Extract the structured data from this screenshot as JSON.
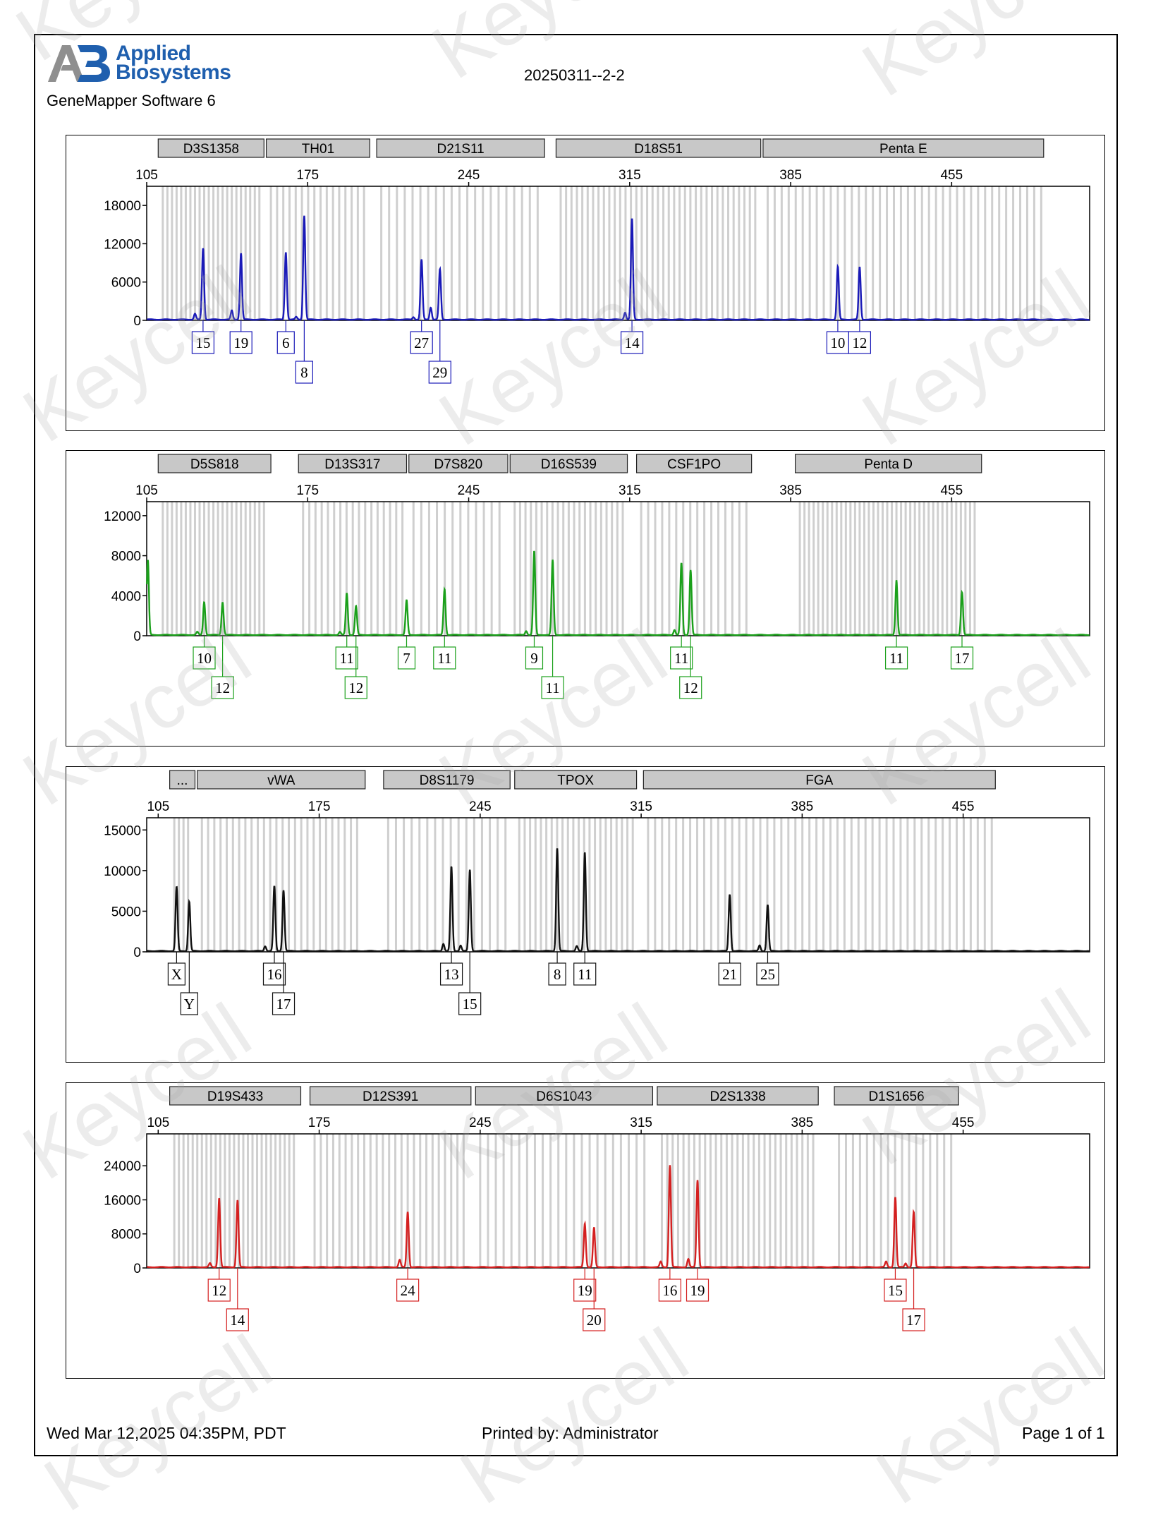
{
  "header": {
    "logo_line1": "Applied",
    "logo_line2": "Biosystems",
    "logo_mark": "AB",
    "software": "GeneMapper Software 6",
    "run_title": "20250311--2-2"
  },
  "footer": {
    "date": "Wed Mar 12,2025 04:35PM, PDT",
    "printed_by": "Printed by: Administrator",
    "page": "Page 1 of 1"
  },
  "watermark": "Keycell",
  "chart_data": [
    {
      "type": "line",
      "color": "#1a1ab8",
      "x_ticks": [
        105,
        175,
        245,
        315,
        385,
        455
      ],
      "xlim": [
        105,
        515
      ],
      "y_ticks": [
        0,
        6000,
        12000,
        18000
      ],
      "ylim": [
        0,
        21000
      ],
      "markers": [
        {
          "name": "D3S1358",
          "start": 110,
          "end": 156
        },
        {
          "name": "TH01",
          "start": 157,
          "end": 202
        },
        {
          "name": "D21S11",
          "start": 205,
          "end": 278
        },
        {
          "name": "D18S51",
          "start": 283,
          "end": 372
        },
        {
          "name": "Penta E",
          "start": 373,
          "end": 495
        }
      ],
      "peaks": [
        {
          "x": 129.5,
          "height": 11200,
          "label": "15"
        },
        {
          "x": 146.0,
          "height": 10400,
          "label": "19"
        },
        {
          "x": 165.5,
          "height": 10600,
          "label": "6"
        },
        {
          "x": 173.5,
          "height": 16300,
          "label": "8"
        },
        {
          "x": 224.5,
          "height": 9400,
          "label": "27"
        },
        {
          "x": 232.5,
          "height": 7900,
          "label": "29"
        },
        {
          "x": 316.0,
          "height": 15800,
          "label": "14"
        },
        {
          "x": 405.5,
          "height": 8300,
          "label": "10"
        },
        {
          "x": 415.0,
          "height": 8200,
          "label": "12"
        }
      ],
      "minor_peaks": [
        {
          "x": 126.0,
          "height": 900
        },
        {
          "x": 142.0,
          "height": 1400
        },
        {
          "x": 228.5,
          "height": 1900
        },
        {
          "x": 313.0,
          "height": 1100
        },
        {
          "x": 170.0,
          "height": 400
        },
        {
          "x": 221.0,
          "height": 400
        }
      ]
    },
    {
      "type": "line",
      "color": "#1ba01b",
      "x_ticks": [
        105,
        175,
        245,
        315,
        385,
        455
      ],
      "xlim": [
        105,
        515
      ],
      "y_ticks": [
        0,
        4000,
        8000,
        12000
      ],
      "ylim": [
        0,
        13400
      ],
      "markers": [
        {
          "name": "D5S818",
          "start": 110,
          "end": 159
        },
        {
          "name": "D13S317",
          "start": 171,
          "end": 218
        },
        {
          "name": "D7S820",
          "start": 219,
          "end": 262
        },
        {
          "name": "D16S539",
          "start": 263,
          "end": 314
        },
        {
          "name": "CSF1PO",
          "start": 318,
          "end": 368
        },
        {
          "name": "Penta D",
          "start": 387,
          "end": 468
        }
      ],
      "peaks": [
        {
          "x": 130.0,
          "height": 3300,
          "label": "10"
        },
        {
          "x": 138.0,
          "height": 3300,
          "label": "12"
        },
        {
          "x": 192.0,
          "height": 4200,
          "label": "11"
        },
        {
          "x": 196.0,
          "height": 2900,
          "label": "12"
        },
        {
          "x": 218.0,
          "height": 3500,
          "label": "7"
        },
        {
          "x": 234.5,
          "height": 4600,
          "label": "11"
        },
        {
          "x": 273.5,
          "height": 8400,
          "label": "9"
        },
        {
          "x": 281.5,
          "height": 7500,
          "label": "11"
        },
        {
          "x": 337.5,
          "height": 7200,
          "label": "11"
        },
        {
          "x": 341.5,
          "height": 6500,
          "label": "12"
        },
        {
          "x": 431.0,
          "height": 5500,
          "label": "11"
        },
        {
          "x": 459.5,
          "height": 4300,
          "label": "17"
        }
      ],
      "minor_peaks": [
        {
          "x": 105.5,
          "height": 7500
        },
        {
          "x": 127.0,
          "height": 300
        },
        {
          "x": 270.0,
          "height": 400
        },
        {
          "x": 334.5,
          "height": 500
        },
        {
          "x": 189.0,
          "height": 300
        }
      ]
    },
    {
      "type": "line",
      "color": "#111111",
      "x_ticks": [
        105,
        175,
        245,
        315,
        385,
        455
      ],
      "xlim": [
        100,
        510
      ],
      "y_ticks": [
        0,
        5000,
        10000,
        15000
      ],
      "ylim": [
        0,
        16500
      ],
      "markers": [
        {
          "name": "...",
          "start": 110,
          "end": 121
        },
        {
          "name": "vWA",
          "start": 122,
          "end": 195
        },
        {
          "name": "D8S1179",
          "start": 203,
          "end": 258
        },
        {
          "name": "TPOX",
          "start": 260,
          "end": 313
        },
        {
          "name": "FGA",
          "start": 316,
          "end": 469
        }
      ],
      "peaks": [
        {
          "x": 113.0,
          "height": 7900,
          "label": "X"
        },
        {
          "x": 118.5,
          "height": 6100,
          "label": "Y"
        },
        {
          "x": 155.5,
          "height": 8000,
          "label": "16"
        },
        {
          "x": 159.5,
          "height": 7500,
          "label": "17"
        },
        {
          "x": 232.5,
          "height": 10400,
          "label": "13"
        },
        {
          "x": 240.5,
          "height": 10000,
          "label": "15"
        },
        {
          "x": 278.5,
          "height": 12700,
          "label": "8"
        },
        {
          "x": 290.5,
          "height": 12200,
          "label": "11"
        },
        {
          "x": 353.5,
          "height": 7000,
          "label": "21"
        },
        {
          "x": 370.0,
          "height": 5700,
          "label": "25"
        }
      ],
      "minor_peaks": [
        {
          "x": 151.5,
          "height": 600
        },
        {
          "x": 229.0,
          "height": 900
        },
        {
          "x": 236.5,
          "height": 700
        },
        {
          "x": 287.0,
          "height": 600
        },
        {
          "x": 366.5,
          "height": 700
        }
      ]
    },
    {
      "type": "line",
      "color": "#d42020",
      "x_ticks": [
        105,
        175,
        245,
        315,
        385,
        455
      ],
      "xlim": [
        100,
        510
      ],
      "y_ticks": [
        0,
        8000,
        16000,
        24000
      ],
      "ylim": [
        0,
        31500
      ],
      "markers": [
        {
          "name": "D19S433",
          "start": 110,
          "end": 167
        },
        {
          "name": "D12S391",
          "start": 171,
          "end": 241
        },
        {
          "name": "D6S1043",
          "start": 243,
          "end": 320
        },
        {
          "name": "D2S1338",
          "start": 322,
          "end": 392
        },
        {
          "name": "D1S1656",
          "start": 399,
          "end": 453
        }
      ],
      "peaks": [
        {
          "x": 131.5,
          "height": 16300,
          "label": "12"
        },
        {
          "x": 139.5,
          "height": 15800,
          "label": "14"
        },
        {
          "x": 213.5,
          "height": 13000,
          "label": "24"
        },
        {
          "x": 290.5,
          "height": 10300,
          "label": "19"
        },
        {
          "x": 294.5,
          "height": 9300,
          "label": "20"
        },
        {
          "x": 327.5,
          "height": 24000,
          "label": "16"
        },
        {
          "x": 339.5,
          "height": 20500,
          "label": "19"
        },
        {
          "x": 425.5,
          "height": 16500,
          "label": "15"
        },
        {
          "x": 433.5,
          "height": 13000,
          "label": "17"
        }
      ],
      "minor_peaks": [
        {
          "x": 127.5,
          "height": 900
        },
        {
          "x": 210.0,
          "height": 1700
        },
        {
          "x": 323.5,
          "height": 1300
        },
        {
          "x": 335.5,
          "height": 1900
        },
        {
          "x": 421.5,
          "height": 1300
        },
        {
          "x": 430.0,
          "height": 900
        }
      ]
    }
  ]
}
